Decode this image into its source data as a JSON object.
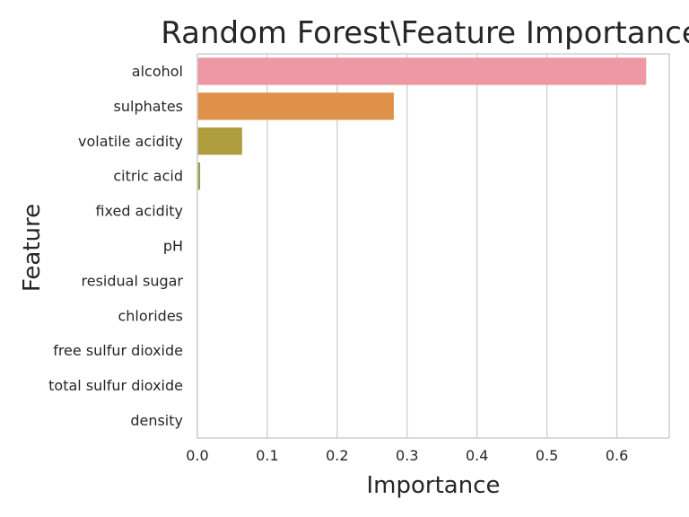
{
  "chart_data": {
    "type": "bar",
    "orientation": "horizontal",
    "title": "Random Forest\\Feature Importance",
    "xlabel": "Importance",
    "ylabel": "Feature",
    "xlim": [
      0,
      0.675
    ],
    "xticks": [
      "0.0",
      "0.1",
      "0.2",
      "0.3",
      "0.4",
      "0.5",
      "0.6"
    ],
    "grid": "vertical",
    "categories": [
      "alcohol",
      "sulphates",
      "volatile acidity",
      "citric acid",
      "fixed acidity",
      "pH",
      "residual sugar",
      "chlorides",
      "free sulfur dioxide",
      "total sulfur dioxide",
      "density"
    ],
    "values": [
      0.642,
      0.281,
      0.064,
      0.004,
      0,
      0,
      0,
      0,
      0,
      0,
      0
    ],
    "colors": [
      "#ee97a5",
      "#df914a",
      "#b09d3e",
      "#8fa84e",
      "#57ab6a",
      "#4cae94",
      "#4dabb0",
      "#53a7c9",
      "#8c9fd9",
      "#c18fd4",
      "#e989c6"
    ]
  }
}
